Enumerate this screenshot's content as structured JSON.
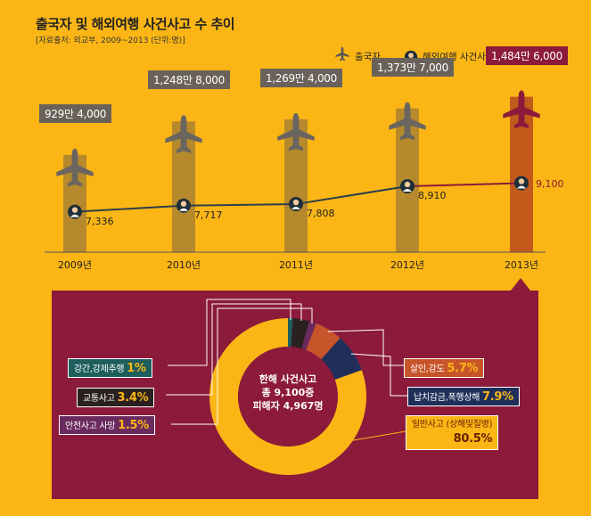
{
  "title": "출국자 및 해외여행 사건사고 수 추이",
  "source": "[자료출처: 외교부, 2009~2013 (단위:명)]",
  "legend": {
    "departures": "출국자",
    "victims": "해외여행 사건사고 가해, 피해자"
  },
  "chart_data": [
    {
      "type": "bar",
      "categories": [
        "2009년",
        "2010년",
        "2011년",
        "2012년",
        "2013년"
      ],
      "series": [
        {
          "name": "출국자",
          "values": [
            9294000,
            12488000,
            12694000,
            13737000,
            14846000
          ],
          "labels": [
            "929만 4,000",
            "1,248만 8,000",
            "1,269만 4,000",
            "1,373만 7,000",
            "1,484만 6,000"
          ]
        },
        {
          "name": "해외여행 사건사고 가해, 피해자",
          "values": [
            7336,
            7717,
            7808,
            8910,
            9100
          ],
          "labels": [
            "7,336",
            "7,717",
            "7,808",
            "8,910",
            "9,100"
          ]
        }
      ],
      "colors": {
        "bar": "#B68A2C",
        "highlight_bar": "#C35A1C",
        "line": "#2C3E48",
        "highlight_line": "#8C1A3A"
      }
    },
    {
      "type": "pie",
      "center_lines": [
        "한해 사건사고",
        "총 9,100중",
        "피해자 4,967명"
      ],
      "slices": [
        {
          "label": "강간,강제추행",
          "value": 1,
          "pct_label": "1%",
          "color": "#1E5F5E"
        },
        {
          "label": "교통사고",
          "value": 3.4,
          "pct_label": "3.4%",
          "color": "#2A2020"
        },
        {
          "label": "안전사고 사망",
          "value": 1.5,
          "pct_label": "1.5%",
          "color": "#6A2A5E"
        },
        {
          "label": "살인,강도",
          "value": 5.7,
          "pct_label": "5.7%",
          "color": "#C8552A"
        },
        {
          "label": "납치감금,폭행상해",
          "value": 7.9,
          "pct_label": "7.9%",
          "color": "#1F2F5A"
        },
        {
          "label": "일반사고 (상해및질병)",
          "value": 80.5,
          "pct_label": "80.5%",
          "color": "#FBB615"
        }
      ]
    }
  ]
}
